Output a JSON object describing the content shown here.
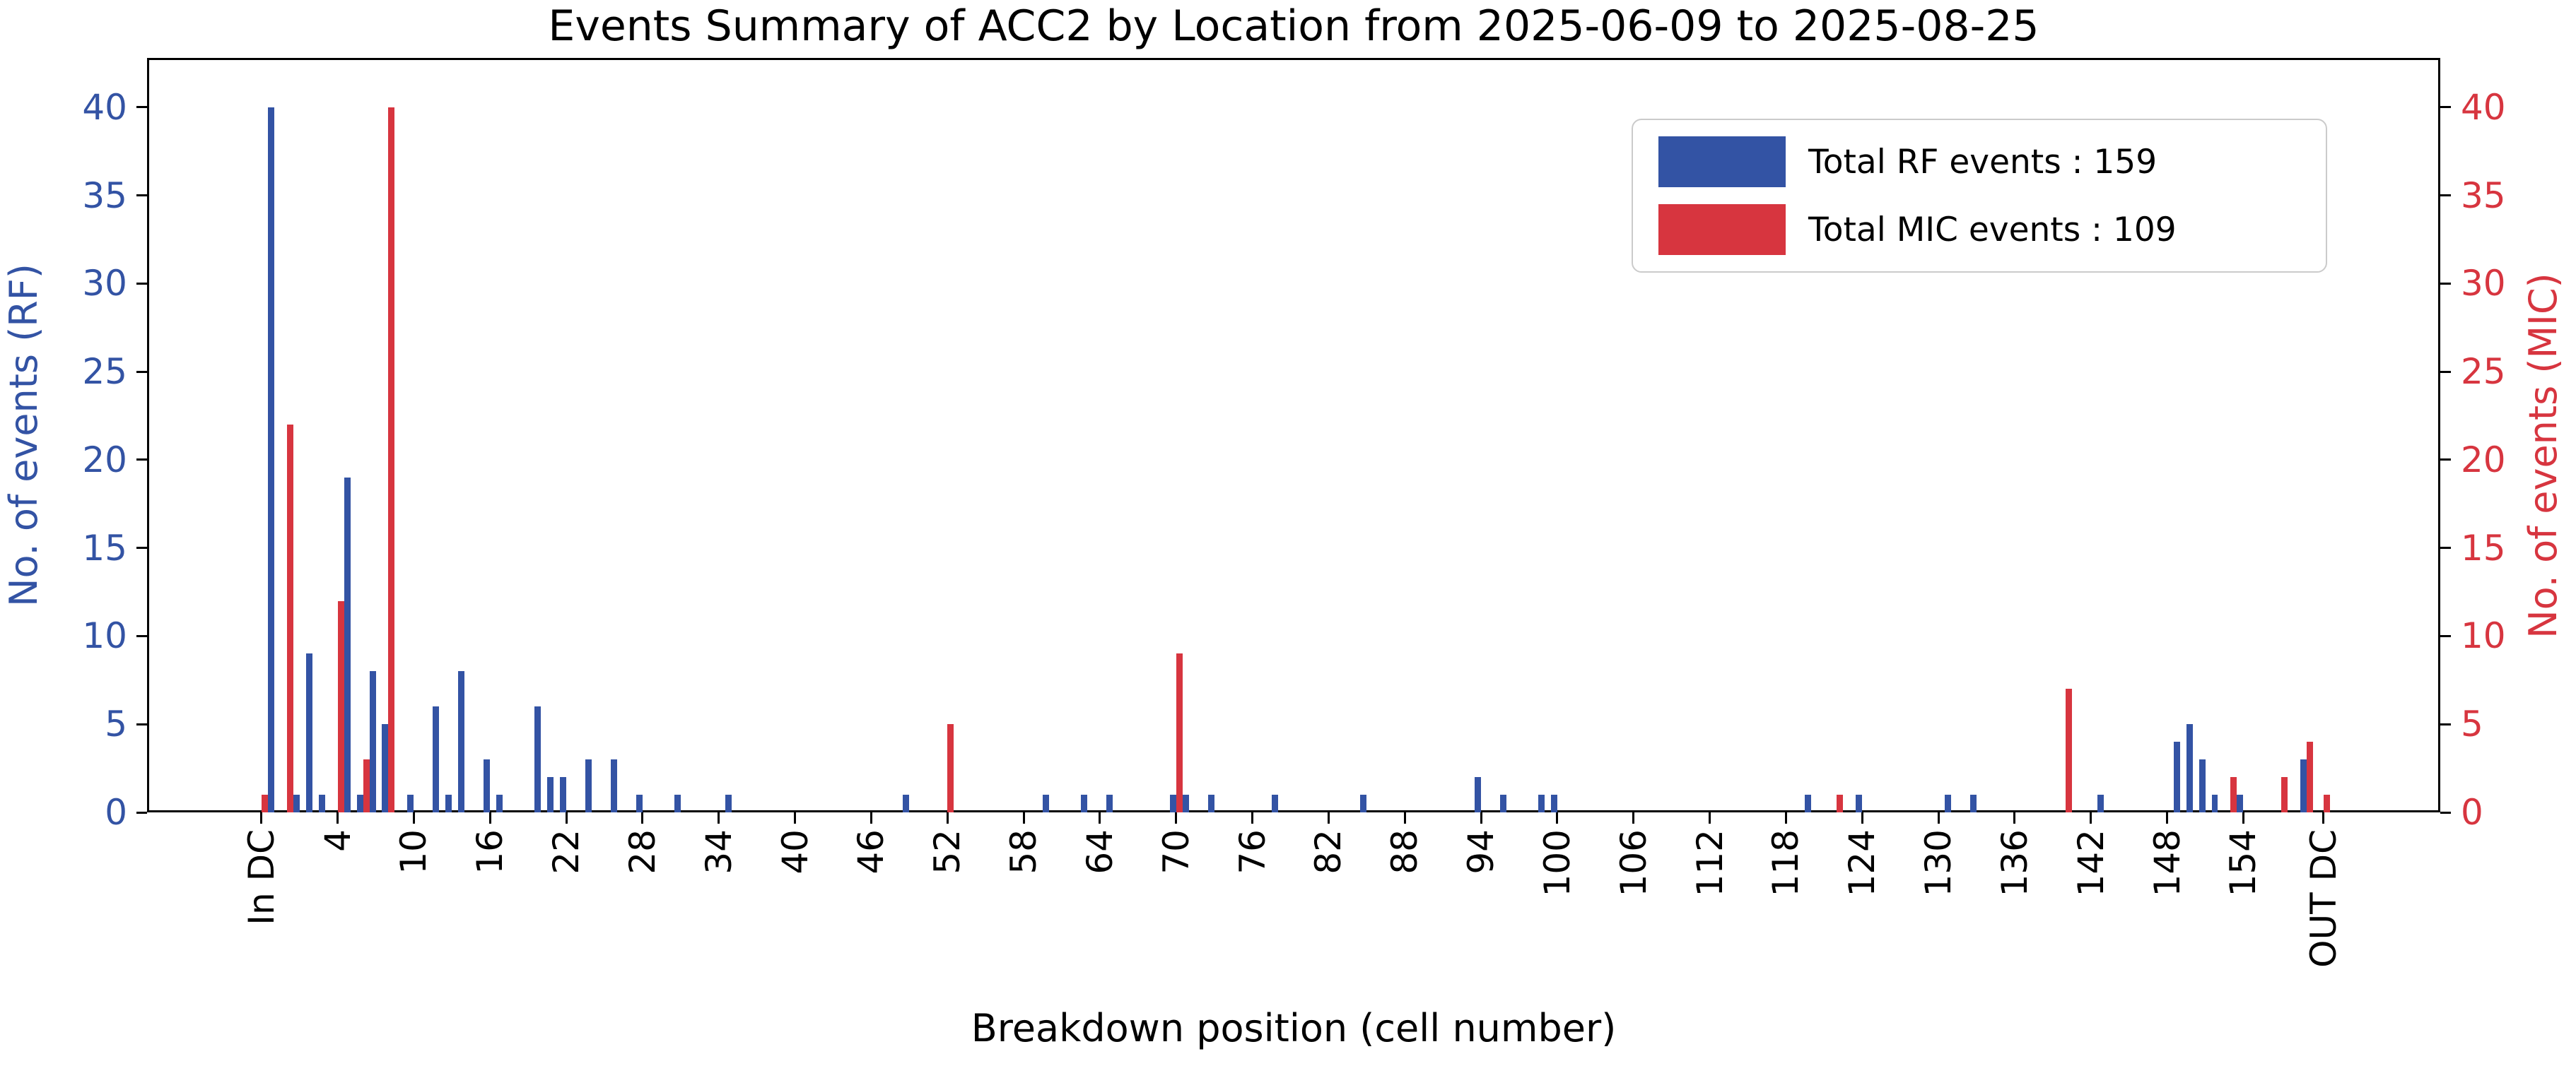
{
  "title": "Events Summary of ACC2 by Location from 2025-06-09 to 2025-08-25",
  "axes": {
    "xlabel": "Breakdown position (cell number)",
    "ylabel_left": "No. of events (RF)",
    "ylabel_right": "No. of events (MIC)"
  },
  "totals": {
    "rf_events": 159,
    "mic_events": 109
  },
  "colors": {
    "rf_blue": "#3353a4",
    "mic_red": "#d7353f",
    "axis_black": "#000000",
    "legend_border": "#cbcbcb"
  },
  "legend": {
    "position": "upper right",
    "entries": [
      {
        "label": "Total RF events : 159",
        "color": "#3353a4"
      },
      {
        "label": "Total MIC events : 109",
        "color": "#d7353f"
      }
    ]
  },
  "chart_data": {
    "type": "bar",
    "title": "Events Summary of ACC2 by Location from 2025-06-09 to 2025-08-25",
    "xlabel": "Breakdown position (cell number)",
    "ylabel_left": "No. of events (RF)",
    "ylabel_right": "No. of events (MIC)",
    "grid": false,
    "ylim": [
      0,
      42.8
    ],
    "yticks_left": [
      0,
      5,
      10,
      15,
      20,
      25,
      30,
      35,
      40
    ],
    "yticks_right": [
      0,
      5,
      10,
      15,
      20,
      25,
      30,
      35,
      40
    ],
    "xlim": [
      -11,
      169.5
    ],
    "bar_slot_width": 0.5,
    "xticks": {
      "positions": [
        -2,
        4,
        10,
        16,
        22,
        28,
        34,
        40,
        46,
        52,
        58,
        64,
        70,
        76,
        82,
        88,
        94,
        100,
        106,
        112,
        118,
        124,
        130,
        136,
        142,
        148,
        154,
        160.3
      ],
      "labels": [
        "In DC",
        "4",
        "10",
        "16",
        "22",
        "28",
        "34",
        "40",
        "46",
        "52",
        "58",
        "64",
        "70",
        "76",
        "82",
        "88",
        "94",
        "100",
        "106",
        "112",
        "118",
        "124",
        "130",
        "136",
        "142",
        "148",
        "154",
        "OUT DC"
      ]
    },
    "series": [
      {
        "name": "Total RF events : 159",
        "key": "rf",
        "axis": "left",
        "color": "#3353a4",
        "slot_offset": 0.5,
        "total": 159,
        "points": [
          [
            -2,
            40
          ],
          [
            0,
            1
          ],
          [
            1,
            9
          ],
          [
            2,
            1
          ],
          [
            4,
            19
          ],
          [
            5,
            1
          ],
          [
            6,
            8
          ],
          [
            7,
            5
          ],
          [
            9,
            1
          ],
          [
            11,
            6
          ],
          [
            12,
            1
          ],
          [
            13,
            8
          ],
          [
            15,
            3
          ],
          [
            16,
            1
          ],
          [
            19,
            6
          ],
          [
            20,
            2
          ],
          [
            21,
            2
          ],
          [
            23,
            3
          ],
          [
            25,
            3
          ],
          [
            27,
            1
          ],
          [
            30,
            1
          ],
          [
            34,
            1
          ],
          [
            48,
            1
          ],
          [
            59,
            1
          ],
          [
            62,
            1
          ],
          [
            64,
            1
          ],
          [
            69,
            1
          ],
          [
            70,
            1
          ],
          [
            72,
            1
          ],
          [
            77,
            1
          ],
          [
            84,
            1
          ],
          [
            93,
            2
          ],
          [
            95,
            1
          ],
          [
            98,
            1
          ],
          [
            99,
            1
          ],
          [
            119,
            1
          ],
          [
            123,
            1
          ],
          [
            130,
            1
          ],
          [
            132,
            1
          ],
          [
            142,
            1
          ],
          [
            148,
            4
          ],
          [
            149,
            5
          ],
          [
            150,
            3
          ],
          [
            151,
            1
          ],
          [
            153,
            1
          ],
          [
            158,
            3
          ]
        ]
      },
      {
        "name": "Total MIC events : 109",
        "key": "mic",
        "axis": "right",
        "color": "#d7353f",
        "slot_offset": 0.0,
        "total": 109,
        "points": [
          [
            -2,
            1
          ],
          [
            0,
            22
          ],
          [
            4,
            12
          ],
          [
            6,
            3
          ],
          [
            8,
            40
          ],
          [
            52,
            5
          ],
          [
            70,
            9
          ],
          [
            122,
            1
          ],
          [
            140,
            7
          ],
          [
            153,
            2
          ],
          [
            157,
            2
          ],
          [
            159,
            4
          ],
          [
            160.3,
            1
          ]
        ]
      }
    ]
  }
}
